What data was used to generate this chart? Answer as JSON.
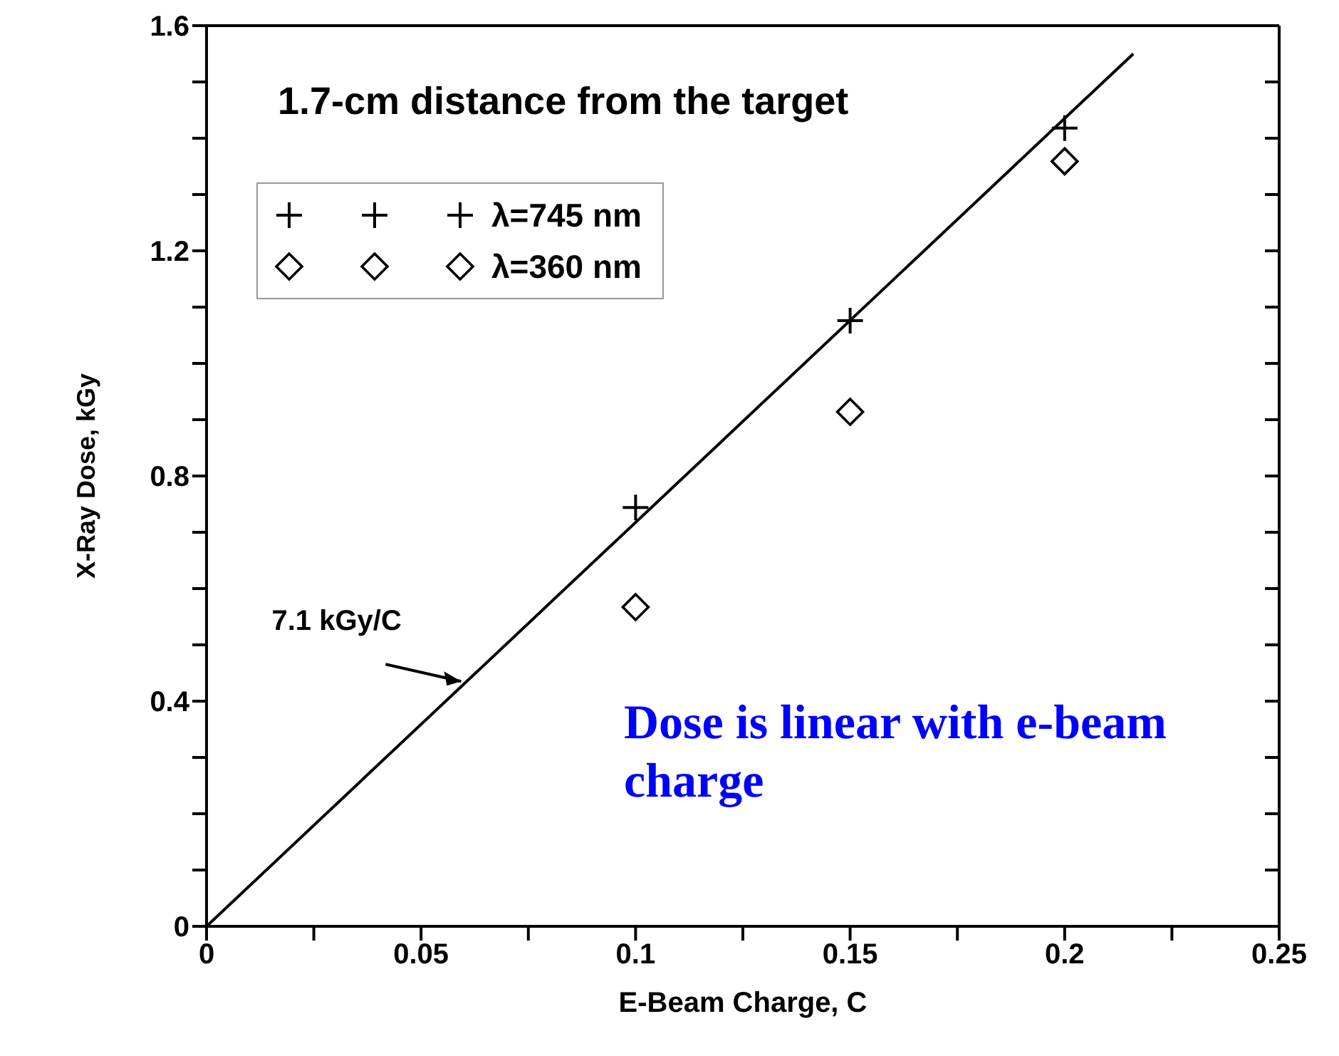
{
  "chart_data": {
    "type": "scatter",
    "xlabel": "E-Beam Charge, C",
    "ylabel": "X-Ray Dose, kGy",
    "xlim": [
      0,
      0.25
    ],
    "ylim": [
      0,
      1.6
    ],
    "xticks": [
      0,
      {
        "value": 0.025,
        "label": null
      },
      0.05,
      {
        "value": 0.075,
        "label": null
      },
      0.1,
      {
        "value": 0.125,
        "label": null
      },
      0.15,
      {
        "value": 0.175,
        "label": null
      },
      0.2,
      {
        "value": 0.225,
        "label": null
      },
      0.25
    ],
    "yticks": [
      0,
      {
        "value": 0.1,
        "label": null
      },
      {
        "value": 0.2,
        "label": null
      },
      {
        "value": 0.3,
        "label": null
      },
      0.4,
      {
        "value": 0.5,
        "label": null
      },
      {
        "value": 0.6,
        "label": null
      },
      {
        "value": 0.7,
        "label": null
      },
      0.8,
      {
        "value": 0.9,
        "label": null
      },
      {
        "value": 1.0,
        "label": null
      },
      {
        "value": 1.1,
        "label": null
      },
      1.2,
      {
        "value": 1.3,
        "label": null
      },
      {
        "value": 1.4,
        "label": null
      },
      {
        "value": 1.5,
        "label": null
      },
      1.6
    ],
    "series": [
      {
        "name": "λ=745 nm",
        "color": "#000000",
        "marker": "cross",
        "x": [
          0.1,
          0.15,
          0.2
        ],
        "values": [
          0.744,
          1.076,
          1.418
        ]
      },
      {
        "name": "λ=360 nm",
        "color": "#000000",
        "marker": "diamond",
        "x": [
          0.1,
          0.15,
          0.2
        ],
        "values": [
          0.567,
          0.914,
          1.359
        ]
      },
      {
        "type": "line",
        "color": "#000000",
        "marker": "none",
        "x": [
          0,
          0.216
        ],
        "values": [
          0,
          1.55
        ]
      }
    ],
    "annotations": [
      "1.7-cm distance from the target",
      {
        "text": "7.1 kGy/C",
        "x": 0.06,
        "y": 0.43
      },
      "Dose is linear with e-beam charge"
    ],
    "legend": "top left"
  }
}
